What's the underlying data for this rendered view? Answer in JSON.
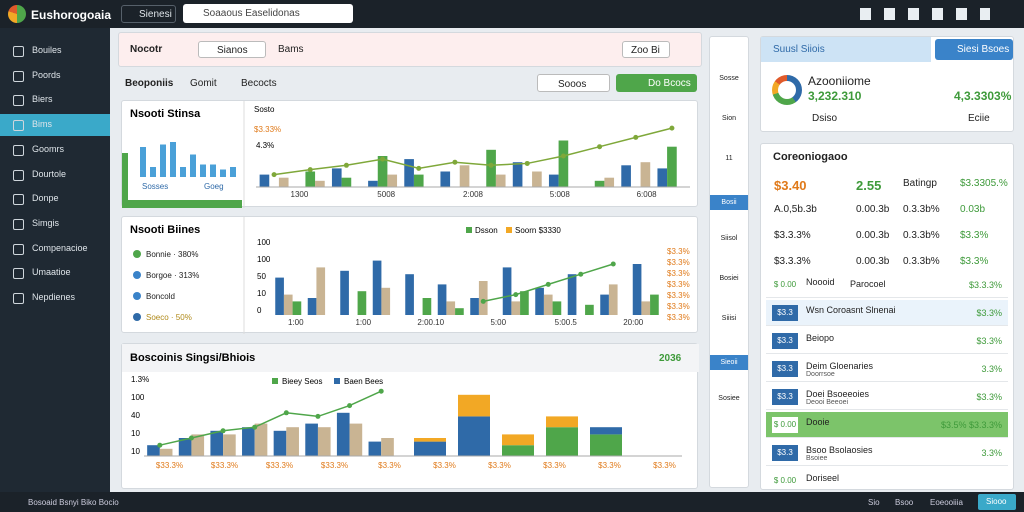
{
  "topbar": {
    "brand": "Eushorogoaia",
    "tab": "Sienesi",
    "search": "Soaaous Easelidonas"
  },
  "sidebar": {
    "items": [
      "Bouiles",
      "Poords",
      "Biers",
      "Bims",
      "Goomrs",
      "Dourtole",
      "Donpe",
      "Simgis",
      "Compenacioe",
      "Umaatioe",
      "Nepdienes"
    ]
  },
  "toolbar": {
    "title": "Nocotr",
    "chip": "Sianos",
    "filter": "Bams",
    "date": "Zoo Bi"
  },
  "filters": {
    "items": [
      "Beoponiis",
      "Gomit",
      "Becocts"
    ],
    "search": "Sooos",
    "button": "Do Bcocs"
  },
  "panels": [
    {
      "title": "Nsooti Stinsa",
      "mini_legend": [
        "Sosses",
        "Goeg"
      ],
      "mini_values": [
        60,
        20,
        65,
        70,
        20,
        45,
        25,
        25,
        15,
        20
      ],
      "labels": [
        "$3.33%",
        "4.3%",
        "Sosto"
      ],
      "x_labels": [
        "1300",
        "5008",
        "2:008",
        "5:008",
        "6:008"
      ],
      "chart": {
        "ylim": [
          0,
          100
        ],
        "series": [
          {
            "color": "#2f6aa8",
            "values": [
              20,
              0,
              30,
              10,
              45,
              25,
              0,
              40,
              20,
              0,
              35,
              30
            ]
          },
          {
            "color": "#4fa64a",
            "values": [
              0,
              25,
              15,
              50,
              20,
              0,
              60,
              0,
              75,
              10,
              0,
              65
            ]
          },
          {
            "color": "#c9b493",
            "values": [
              15,
              10,
              0,
              20,
              0,
              35,
              20,
              25,
              0,
              15,
              40,
              0
            ]
          }
        ],
        "line": [
          20,
          28,
          35,
          45,
          30,
          40,
          35,
          38,
          50,
          65,
          80,
          95
        ],
        "line_color": "#7fa83a"
      }
    },
    {
      "title": "Nsooti Biines",
      "legend_items": [
        "Bonnie · 380%",
        "Borgoe · 313%",
        "Boncold",
        "Soeco · 50%"
      ],
      "legend": [
        "Dsson",
        "Soorn $3330"
      ],
      "y_labels": [
        "100",
        "100",
        "50",
        "10",
        "0"
      ],
      "right_labels": [
        "$3.3%",
        "$3.3%",
        "$3.3%",
        "$3.3%",
        "$3.3%",
        "$3.3%",
        "$3.3%"
      ],
      "x_labels": [
        "1:00",
        "1:00",
        "2:00.10",
        "5:00",
        "5:00.5",
        "20:00"
      ],
      "chart": {
        "ylim": [
          0,
          100
        ],
        "series": [
          {
            "color": "#2f6aa8",
            "values": [
              55,
              25,
              65,
              80,
              60,
              45,
              25,
              70,
              40,
              60,
              30,
              75
            ]
          },
          {
            "color": "#c9b493",
            "values": [
              30,
              70,
              0,
              40,
              0,
              20,
              50,
              20,
              30,
              0,
              45,
              20
            ]
          },
          {
            "color": "#4fa64a",
            "values": [
              20,
              0,
              35,
              0,
              25,
              10,
              0,
              35,
              20,
              15,
              0,
              30
            ]
          }
        ],
        "line": [
          null,
          null,
          null,
          null,
          null,
          null,
          20,
          30,
          45,
          60,
          75,
          null
        ],
        "line_color": "#4fa64a"
      }
    },
    {
      "title": "Boscoinis Singsi/Bhiois",
      "badge": "2036",
      "legend": [
        "Bieey Seos",
        "Baen Bees"
      ],
      "y_labels": [
        "1.3%",
        "100",
        "40",
        "10",
        "10"
      ],
      "x_labels": [
        "$33.3%",
        "$33.3%",
        "$33.3%",
        "$33.3%",
        "$3.3%",
        "$3.3%",
        "$3.3%",
        "$3.3%",
        "$3.3%",
        "$3.3%"
      ],
      "chart": {
        "ylim": [
          0,
          100
        ],
        "series": [
          {
            "color": "#2f6aa8",
            "values": [
              15,
              25,
              35,
              40,
              35,
              45,
              60,
              20
            ]
          },
          {
            "color": "#c9b493",
            "values": [
              10,
              30,
              30,
              45,
              40,
              40,
              45,
              25
            ]
          }
        ],
        "line": [
          15,
          25,
          35,
          40,
          60,
          55,
          70,
          90
        ],
        "line_color": "#4fa64a"
      },
      "stacks": [
        {
          "values": [
            20,
            5
          ],
          "colors": [
            "#2f6aa8",
            "#f2a825"
          ]
        },
        {
          "values": [
            55,
            30
          ],
          "colors": [
            "#2f6aa8",
            "#f2a825"
          ]
        },
        {
          "values": [
            15,
            15
          ],
          "colors": [
            "#4fa64a",
            "#f2a825"
          ]
        },
        {
          "values": [
            40,
            15
          ],
          "colors": [
            "#4fa64a",
            "#f2a825"
          ]
        },
        {
          "values": [
            30,
            10
          ],
          "colors": [
            "#4fa64a",
            "#2f6aa8"
          ]
        }
      ]
    }
  ],
  "rail": [
    "Sosse",
    "Sion",
    "11",
    "Bosii",
    "Siisol",
    "Bosiei",
    "Siiisi",
    "Sieoii",
    "Sosiee"
  ],
  "card": {
    "header": "Suusl Siiois",
    "button": "Siesi Bsoes",
    "name": "Azooniiome",
    "value": "3,232.310",
    "change": "4,3.3303%",
    "link": "Dsiso",
    "link2": "Eciie"
  },
  "list": {
    "title": "Coreoniogaoo",
    "top": [
      [
        "$3.40",
        "2.55",
        "Batingp",
        "$3.3305.%"
      ],
      [
        "A.0,5b.3b",
        "0.00.3b",
        "0.3.3b%",
        "0.03b"
      ],
      [
        "$3.3.3%",
        "0.00.3b",
        "0.3.3b%",
        "$3.3%"
      ],
      [
        "$3.3.3%",
        "0.00.3b",
        "0.3.3b%",
        "$3.3%"
      ]
    ],
    "rows": [
      [
        "$ 0.00",
        "Noooid",
        "Parocoel",
        "$3.3.3%"
      ],
      [
        "$3.3",
        "Wsn Coroasnt Slnenai",
        "",
        "$3.3%"
      ],
      [
        "$3.3",
        "Beiopo",
        "",
        "$3.3%"
      ],
      [
        "$3.3",
        "Deim Gloenaries",
        "Doorrsoe",
        "3.3%"
      ],
      [
        "$3.3",
        "Doei Bsoeeoies",
        "Deooi Beeoei",
        "$3.3%"
      ],
      [
        "$ 0.00",
        "Dooie",
        "",
        "$3.5% $3.3.3%"
      ],
      [
        "$3.3",
        "Bsoo Bsolaosies",
        "Bsoiee",
        "3.3%"
      ],
      [
        "$ 0.00",
        "Doriseel",
        "",
        ""
      ]
    ]
  },
  "status": {
    "left": "Bosoaid Bsnyi Biko Bocio",
    "right1": "Sio",
    "right2": "Bsoo",
    "right3": "Eoeooiiia",
    "button": "Siooo"
  }
}
